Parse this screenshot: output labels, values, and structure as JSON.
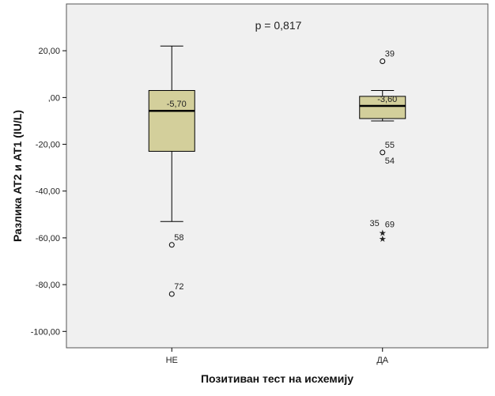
{
  "chart_data": {
    "type": "boxplot",
    "xlabel": "Позитиван тест на исхемију",
    "ylabel": "Разлика AT2 и AT1 (IU/L)",
    "annotation": "p = 0,817",
    "ylim": [
      -107,
      40
    ],
    "yticks": [
      20,
      0,
      -20,
      -40,
      -60,
      -80,
      -100
    ],
    "ytick_labels": [
      "20,00",
      ",00",
      "-20,00",
      "-40,00",
      "-60,00",
      "-80,00",
      "-100,00"
    ],
    "categories": [
      "НЕ",
      "ДА"
    ],
    "boxes": [
      {
        "category": "НЕ",
        "whisker_low": -53,
        "q1": -23,
        "median": -5.7,
        "q3": 3,
        "whisker_high": 22,
        "median_label": "-5,70",
        "outliers": [
          {
            "value": -63,
            "label": "58",
            "marker": "circle"
          },
          {
            "value": -84,
            "label": "72",
            "marker": "circle"
          }
        ]
      },
      {
        "category": "ДА",
        "whisker_low": -10,
        "q1": -9,
        "median": -3.6,
        "q3": 0.5,
        "whisker_high": 3,
        "median_label": "-3,60",
        "outliers": [
          {
            "value": 15.5,
            "label": "39",
            "marker": "circle"
          },
          {
            "value": -23.5,
            "label": "55",
            "marker": "circle"
          },
          {
            "value": -57.5,
            "label": "69",
            "marker": "star"
          },
          {
            "value": -60,
            "label": "35",
            "marker": "star"
          }
        ],
        "extra_labels": [
          {
            "value": -23.5,
            "label": "54"
          }
        ]
      }
    ],
    "colors": {
      "plot_bg": "#f0f0f0",
      "box_fill": "#d3cf9b",
      "line": "#000000"
    }
  }
}
